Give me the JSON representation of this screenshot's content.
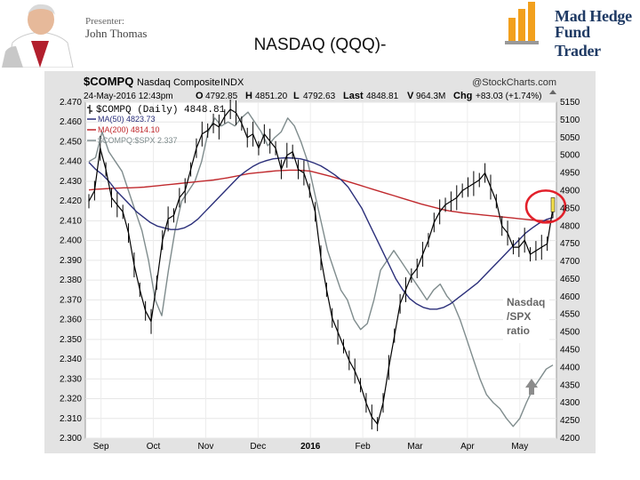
{
  "presenter": {
    "label": "Presenter:",
    "name": "John Thomas"
  },
  "slide_title": "NASDAQ (QQQ)-",
  "logo": {
    "line1": "Mad Hedge",
    "line2": "Fund Trader"
  },
  "colors": {
    "price": "#000000",
    "ma50": "#2b2f7a",
    "ma200": "#c0292d",
    "ratio": "#7f8c8d",
    "highlight_circle": "#e2202a",
    "highlight_bar": "#f4e04d",
    "arrow": "#8c8c8c"
  },
  "chart_data": {
    "type": "line",
    "header": {
      "ticker": "$COMPQ",
      "name": "Nasdaq Composite",
      "exchange": "INDX",
      "source": "@StockCharts.com",
      "date": "24-May-2016 12:43pm",
      "open_label": "O",
      "open": "4792.85",
      "high_label": "H",
      "high": "4851.20",
      "low_label": "L",
      "low": "4792.63",
      "last_label": "Last",
      "last": "4848.81",
      "volume_label": "V",
      "volume": "964.3M",
      "change_label": "Chg",
      "change": "+83.03 (+1.74%)"
    },
    "legend": [
      {
        "label": "$COMPQ (Daily) 4848.81",
        "key": "price"
      },
      {
        "label": "MA(50) 4823.73",
        "key": "ma50"
      },
      {
        "label": "MA(200) 4814.10",
        "key": "ma200"
      },
      {
        "label": "$COMPQ:$SPX 2.337",
        "key": "ratio"
      }
    ],
    "annotation": [
      "Nasdaq",
      "/SPX",
      "ratio"
    ],
    "x_labels": [
      "Sep",
      "Oct",
      "Nov",
      "Dec",
      "2016",
      "Feb",
      "Mar",
      "Apr",
      "May"
    ],
    "left_axis": {
      "min": 2.3,
      "max": 2.47,
      "ticks": [
        2.47,
        2.46,
        2.45,
        2.44,
        2.43,
        2.42,
        2.41,
        2.4,
        2.39,
        2.38,
        2.37,
        2.36,
        2.35,
        2.34,
        2.33,
        2.32,
        2.31,
        2.3
      ],
      "tick_labels": [
        "2.470",
        "2.460",
        "2.450",
        "2.440",
        "2.430",
        "2.420",
        "2.410",
        "2.400",
        "2.390",
        "2.380",
        "2.370",
        "2.360",
        "2.350",
        "2.340",
        "2.330",
        "2.320",
        "2.310",
        "2.300"
      ]
    },
    "right_axis": {
      "min": 4200,
      "max": 5150,
      "ticks": [
        5150,
        5100,
        5050,
        5000,
        4950,
        4900,
        4850,
        4800,
        4750,
        4700,
        4650,
        4600,
        4550,
        4500,
        4450,
        4400,
        4350,
        4300,
        4250,
        4200
      ],
      "tick_labels": [
        "5150",
        "5100",
        "5050",
        "5000",
        "4950",
        "4900",
        "4850",
        "4800",
        "4750",
        "4700",
        "4650",
        "4600",
        "4550",
        "4500",
        "4450",
        "4400",
        "4350",
        "4300",
        "4250",
        "4200"
      ]
    },
    "series": [
      {
        "key": "price",
        "axis": "right",
        "values": [
          4870,
          4900,
          5020,
          4960,
          4880,
          4860,
          4840,
          4780,
          4690,
          4620,
          4560,
          4530,
          4640,
          4760,
          4820,
          4830,
          4880,
          4900,
          4960,
          5020,
          5060,
          5070,
          5090,
          5080,
          5110,
          5130,
          5120,
          5090,
          5050,
          5060,
          5020,
          5060,
          5040,
          5020,
          4960,
          5000,
          5010,
          4960,
          4950,
          4900,
          4840,
          4710,
          4620,
          4540,
          4500,
          4460,
          4420,
          4390,
          4350,
          4300,
          4260,
          4240,
          4300,
          4400,
          4490,
          4580,
          4620,
          4660,
          4680,
          4720,
          4760,
          4810,
          4840,
          4860,
          4870,
          4880,
          4900,
          4910,
          4920,
          4930,
          4950,
          4910,
          4870,
          4800,
          4780,
          4740,
          4740,
          4760,
          4720,
          4730,
          4740,
          4750,
          4850
        ]
      },
      {
        "key": "ma50",
        "axis": "right",
        "values": [
          4980,
          4960,
          4945,
          4925,
          4900,
          4880,
          4860,
          4840,
          4825,
          4810,
          4800,
          4795,
          4790,
          4790,
          4795,
          4805,
          4820,
          4840,
          4860,
          4880,
          4900,
          4920,
          4940,
          4955,
          4968,
          4978,
          4985,
          4990,
          4992,
          4993,
          4992,
          4990,
          4985,
          4978,
          4970,
          4958,
          4945,
          4930,
          4910,
          4880,
          4850,
          4810,
          4770,
          4730,
          4690,
          4650,
          4620,
          4595,
          4580,
          4570,
          4565,
          4565,
          4570,
          4580,
          4595,
          4610,
          4625,
          4640,
          4660,
          4680,
          4700,
          4720,
          4740,
          4760,
          4780,
          4795,
          4808,
          4818,
          4824
        ]
      },
      {
        "key": "ma200",
        "axis": "right",
        "values": [
          4902,
          4904,
          4905,
          4906,
          4907,
          4908,
          4908,
          4909,
          4910,
          4912,
          4914,
          4916,
          4918,
          4920,
          4922,
          4924,
          4926,
          4928,
          4930,
          4933,
          4936,
          4940,
          4944,
          4948,
          4950,
          4952,
          4954,
          4956,
          4957,
          4958,
          4958,
          4957,
          4955,
          4950,
          4945,
          4940,
          4934,
          4928,
          4922,
          4916,
          4910,
          4904,
          4898,
          4892,
          4886,
          4880,
          4874,
          4868,
          4862,
          4857,
          4852,
          4847,
          4843,
          4840,
          4837,
          4835,
          4833,
          4831,
          4829,
          4827,
          4825,
          4823,
          4821,
          4819,
          4817,
          4816,
          4815,
          4814
        ]
      },
      {
        "key": "ratio",
        "axis": "left",
        "values": [
          2.44,
          2.442,
          2.455,
          2.445,
          2.44,
          2.435,
          2.425,
          2.415,
          2.405,
          2.39,
          2.37,
          2.362,
          2.385,
          2.405,
          2.42,
          2.425,
          2.43,
          2.44,
          2.455,
          2.462,
          2.458,
          2.46,
          2.458,
          2.462,
          2.465,
          2.46,
          2.455,
          2.448,
          2.452,
          2.455,
          2.462,
          2.458,
          2.45,
          2.44,
          2.425,
          2.41,
          2.395,
          2.385,
          2.375,
          2.37,
          2.36,
          2.355,
          2.358,
          2.37,
          2.385,
          2.39,
          2.395,
          2.39,
          2.385,
          2.38,
          2.375,
          2.37,
          2.375,
          2.378,
          2.372,
          2.368,
          2.36,
          2.35,
          2.34,
          2.33,
          2.322,
          2.318,
          2.315,
          2.31,
          2.306,
          2.31,
          2.318,
          2.325,
          2.33,
          2.335,
          2.337
        ]
      }
    ]
  }
}
